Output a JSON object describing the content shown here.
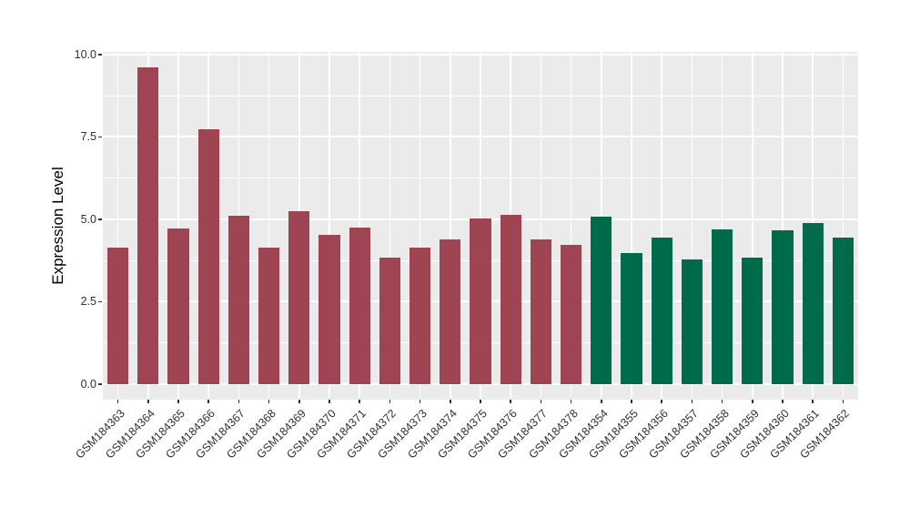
{
  "chart_data": {
    "type": "bar",
    "title": "",
    "xlabel": "",
    "ylabel": "Expression Level",
    "ylim": [
      0,
      10.08
    ],
    "yticks": [
      0.0,
      2.5,
      5.0,
      7.5,
      10.0
    ],
    "ytick_labels": [
      "0.0",
      "2.5",
      "5.0",
      "7.5",
      "10.0"
    ],
    "minor_yticks": [
      1.25,
      3.75,
      6.25,
      8.75
    ],
    "grid": true,
    "legend": "none",
    "panel_bg": "#ebebeb",
    "grid_color": "#ffffff",
    "group_colors": {
      "maroon": "#9e4453",
      "green": "#006b4a"
    },
    "categories": [
      "GSM184363",
      "GSM184364",
      "GSM184365",
      "GSM184366",
      "GSM184367",
      "GSM184368",
      "GSM184369",
      "GSM184370",
      "GSM184371",
      "GSM184372",
      "GSM184373",
      "GSM184374",
      "GSM184375",
      "GSM184376",
      "GSM184377",
      "GSM184378",
      "GSM184354",
      "GSM184355",
      "GSM184356",
      "GSM184357",
      "GSM184358",
      "GSM184359",
      "GSM184360",
      "GSM184361",
      "GSM184362"
    ],
    "values": [
      4.15,
      9.6,
      4.72,
      7.74,
      5.11,
      4.15,
      5.26,
      4.52,
      4.75,
      3.85,
      4.15,
      4.38,
      5.03,
      5.13,
      4.38,
      4.22,
      5.08,
      3.99,
      4.45,
      3.78,
      4.69,
      3.85,
      4.66,
      4.9,
      4.46
    ],
    "bar_groups": [
      "maroon",
      "maroon",
      "maroon",
      "maroon",
      "maroon",
      "maroon",
      "maroon",
      "maroon",
      "maroon",
      "maroon",
      "maroon",
      "maroon",
      "maroon",
      "maroon",
      "maroon",
      "maroon",
      "green",
      "green",
      "green",
      "green",
      "green",
      "green",
      "green",
      "green",
      "green"
    ]
  }
}
